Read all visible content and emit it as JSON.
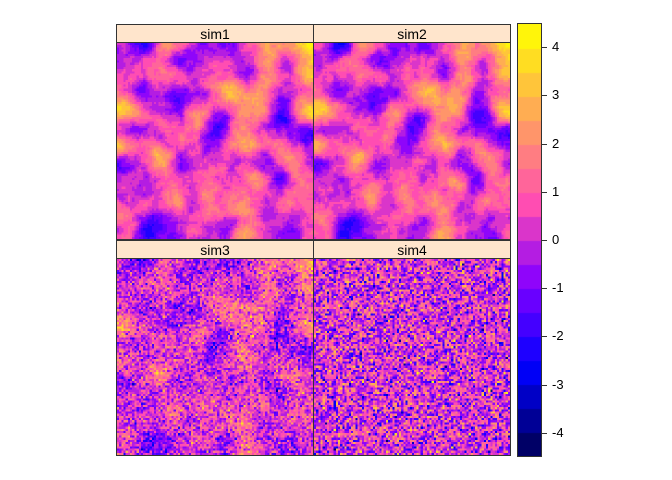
{
  "chart_data": {
    "type": "heatmap",
    "title": "",
    "panels": [
      {
        "name": "sim1",
        "smoothness": "high"
      },
      {
        "name": "sim2",
        "smoothness": "high"
      },
      {
        "name": "sim3",
        "smoothness": "medium"
      },
      {
        "name": "sim4",
        "smoothness": "none"
      }
    ],
    "colorbar": {
      "range": [
        -4.5,
        4.5
      ],
      "bin_width": 0.5,
      "ticks": [
        -4,
        -3,
        -2,
        -1,
        0,
        1,
        2,
        3,
        4
      ],
      "tick_labels": [
        "-4",
        "-3",
        "-2",
        "-1",
        "0",
        "1",
        "2",
        "3",
        "4"
      ],
      "palette": "bpy"
    }
  }
}
